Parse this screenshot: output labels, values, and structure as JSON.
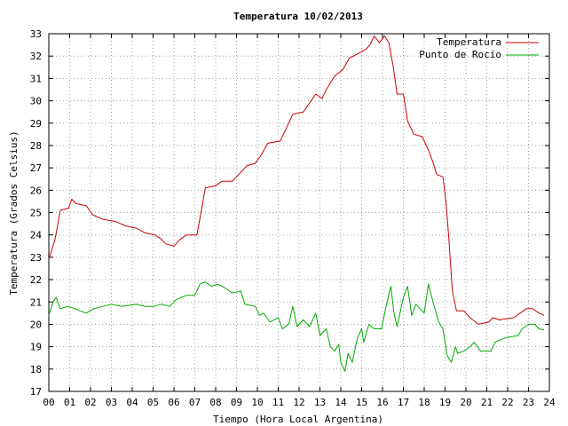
{
  "chart_data": {
    "type": "line",
    "title": "Temperatura 10/02/2013",
    "xlabel": "Tiempo (Hora Local Argentina)",
    "ylabel": "Temperatura (Grados Celsius)",
    "xlim": [
      0,
      24
    ],
    "ylim": [
      17,
      33
    ],
    "grid": true,
    "legend_position": "top-right",
    "x_ticks": [
      "00",
      "01",
      "02",
      "03",
      "04",
      "05",
      "06",
      "07",
      "08",
      "09",
      "10",
      "11",
      "12",
      "13",
      "14",
      "15",
      "16",
      "17",
      "18",
      "19",
      "20",
      "21",
      "22",
      "23",
      "24"
    ],
    "y_ticks": [
      "17",
      "18",
      "19",
      "20",
      "21",
      "22",
      "23",
      "24",
      "25",
      "26",
      "27",
      "28",
      "29",
      "30",
      "31",
      "32",
      "33"
    ],
    "series": [
      {
        "name": "Temperatura",
        "color": "#cc0000",
        "points": [
          [
            0.0,
            22.9
          ],
          [
            0.3,
            23.8
          ],
          [
            0.55,
            25.1
          ],
          [
            0.95,
            25.2
          ],
          [
            1.1,
            25.6
          ],
          [
            1.3,
            25.4
          ],
          [
            1.8,
            25.3
          ],
          [
            2.1,
            24.9
          ],
          [
            2.6,
            24.7
          ],
          [
            3.2,
            24.6
          ],
          [
            3.7,
            24.4
          ],
          [
            4.2,
            24.3
          ],
          [
            4.6,
            24.1
          ],
          [
            5.1,
            24.0
          ],
          [
            5.4,
            23.8
          ],
          [
            5.6,
            23.6
          ],
          [
            6.0,
            23.5
          ],
          [
            6.3,
            23.8
          ],
          [
            6.6,
            24.0
          ],
          [
            7.1,
            24.0
          ],
          [
            7.3,
            25.0
          ],
          [
            7.5,
            26.1
          ],
          [
            8.0,
            26.2
          ],
          [
            8.3,
            26.4
          ],
          [
            8.8,
            26.4
          ],
          [
            9.1,
            26.7
          ],
          [
            9.5,
            27.1
          ],
          [
            9.9,
            27.2
          ],
          [
            10.2,
            27.6
          ],
          [
            10.5,
            28.1
          ],
          [
            11.1,
            28.2
          ],
          [
            11.4,
            28.8
          ],
          [
            11.7,
            29.4
          ],
          [
            12.2,
            29.5
          ],
          [
            12.5,
            29.9
          ],
          [
            12.8,
            30.3
          ],
          [
            13.1,
            30.1
          ],
          [
            13.3,
            30.5
          ],
          [
            13.7,
            31.1
          ],
          [
            14.1,
            31.4
          ],
          [
            14.4,
            31.9
          ],
          [
            14.8,
            32.1
          ],
          [
            15.2,
            32.3
          ],
          [
            15.4,
            32.5
          ],
          [
            15.6,
            32.9
          ],
          [
            15.85,
            32.6
          ],
          [
            16.1,
            32.9
          ],
          [
            16.3,
            32.6
          ],
          [
            16.5,
            31.6
          ],
          [
            16.7,
            30.3
          ],
          [
            17.0,
            30.3
          ],
          [
            17.2,
            29.1
          ],
          [
            17.5,
            28.5
          ],
          [
            17.9,
            28.4
          ],
          [
            18.2,
            27.8
          ],
          [
            18.4,
            27.3
          ],
          [
            18.6,
            26.7
          ],
          [
            18.9,
            26.6
          ],
          [
            19.05,
            25.4
          ],
          [
            19.2,
            23.6
          ],
          [
            19.35,
            21.5
          ],
          [
            19.55,
            20.6
          ],
          [
            19.9,
            20.6
          ],
          [
            20.2,
            20.3
          ],
          [
            20.6,
            20.0
          ],
          [
            21.1,
            20.1
          ],
          [
            21.3,
            20.3
          ],
          [
            21.6,
            20.2
          ],
          [
            22.3,
            20.3
          ],
          [
            22.6,
            20.5
          ],
          [
            22.9,
            20.7
          ],
          [
            23.2,
            20.7
          ],
          [
            23.5,
            20.5
          ],
          [
            23.75,
            20.4
          ]
        ]
      },
      {
        "name": "Punto de Rocío",
        "color": "#00aa00",
        "points": [
          [
            0.0,
            20.4
          ],
          [
            0.2,
            21.0
          ],
          [
            0.35,
            21.2
          ],
          [
            0.55,
            20.7
          ],
          [
            0.9,
            20.8
          ],
          [
            1.25,
            20.7
          ],
          [
            1.5,
            20.6
          ],
          [
            1.8,
            20.5
          ],
          [
            2.15,
            20.7
          ],
          [
            2.6,
            20.8
          ],
          [
            3.0,
            20.9
          ],
          [
            3.5,
            20.8
          ],
          [
            4.2,
            20.9
          ],
          [
            4.6,
            20.8
          ],
          [
            5.0,
            20.8
          ],
          [
            5.4,
            20.9
          ],
          [
            5.8,
            20.8
          ],
          [
            6.1,
            21.1
          ],
          [
            6.6,
            21.3
          ],
          [
            7.0,
            21.3
          ],
          [
            7.25,
            21.8
          ],
          [
            7.5,
            21.9
          ],
          [
            7.8,
            21.7
          ],
          [
            8.1,
            21.8
          ],
          [
            8.5,
            21.6
          ],
          [
            8.8,
            21.4
          ],
          [
            9.2,
            21.5
          ],
          [
            9.4,
            20.9
          ],
          [
            9.9,
            20.8
          ],
          [
            10.1,
            20.4
          ],
          [
            10.3,
            20.5
          ],
          [
            10.6,
            20.1
          ],
          [
            11.0,
            20.3
          ],
          [
            11.2,
            19.8
          ],
          [
            11.5,
            20.0
          ],
          [
            11.7,
            20.8
          ],
          [
            11.9,
            19.9
          ],
          [
            12.2,
            20.2
          ],
          [
            12.5,
            19.9
          ],
          [
            12.8,
            20.5
          ],
          [
            13.0,
            19.5
          ],
          [
            13.3,
            19.8
          ],
          [
            13.5,
            19.0
          ],
          [
            13.7,
            18.8
          ],
          [
            13.9,
            19.1
          ],
          [
            14.0,
            18.3
          ],
          [
            14.2,
            17.9
          ],
          [
            14.35,
            18.7
          ],
          [
            14.55,
            18.3
          ],
          [
            14.8,
            19.4
          ],
          [
            15.0,
            19.8
          ],
          [
            15.1,
            19.2
          ],
          [
            15.35,
            20.0
          ],
          [
            15.6,
            19.8
          ],
          [
            15.95,
            19.8
          ],
          [
            16.15,
            20.7
          ],
          [
            16.4,
            21.7
          ],
          [
            16.55,
            20.5
          ],
          [
            16.7,
            19.9
          ],
          [
            17.0,
            21.2
          ],
          [
            17.2,
            21.7
          ],
          [
            17.4,
            20.4
          ],
          [
            17.6,
            20.9
          ],
          [
            17.8,
            20.7
          ],
          [
            18.0,
            20.5
          ],
          [
            18.2,
            21.8
          ],
          [
            18.45,
            20.9
          ],
          [
            18.7,
            20.1
          ],
          [
            18.9,
            19.8
          ],
          [
            19.1,
            18.6
          ],
          [
            19.3,
            18.3
          ],
          [
            19.5,
            19.0
          ],
          [
            19.6,
            18.7
          ],
          [
            19.9,
            18.8
          ],
          [
            20.2,
            19.0
          ],
          [
            20.4,
            19.2
          ],
          [
            20.7,
            18.8
          ],
          [
            21.2,
            18.8
          ],
          [
            21.4,
            19.2
          ],
          [
            21.9,
            19.4
          ],
          [
            22.5,
            19.5
          ],
          [
            22.7,
            19.8
          ],
          [
            23.0,
            20.0
          ],
          [
            23.3,
            20.0
          ],
          [
            23.5,
            19.8
          ],
          [
            23.75,
            19.75
          ]
        ]
      }
    ]
  }
}
